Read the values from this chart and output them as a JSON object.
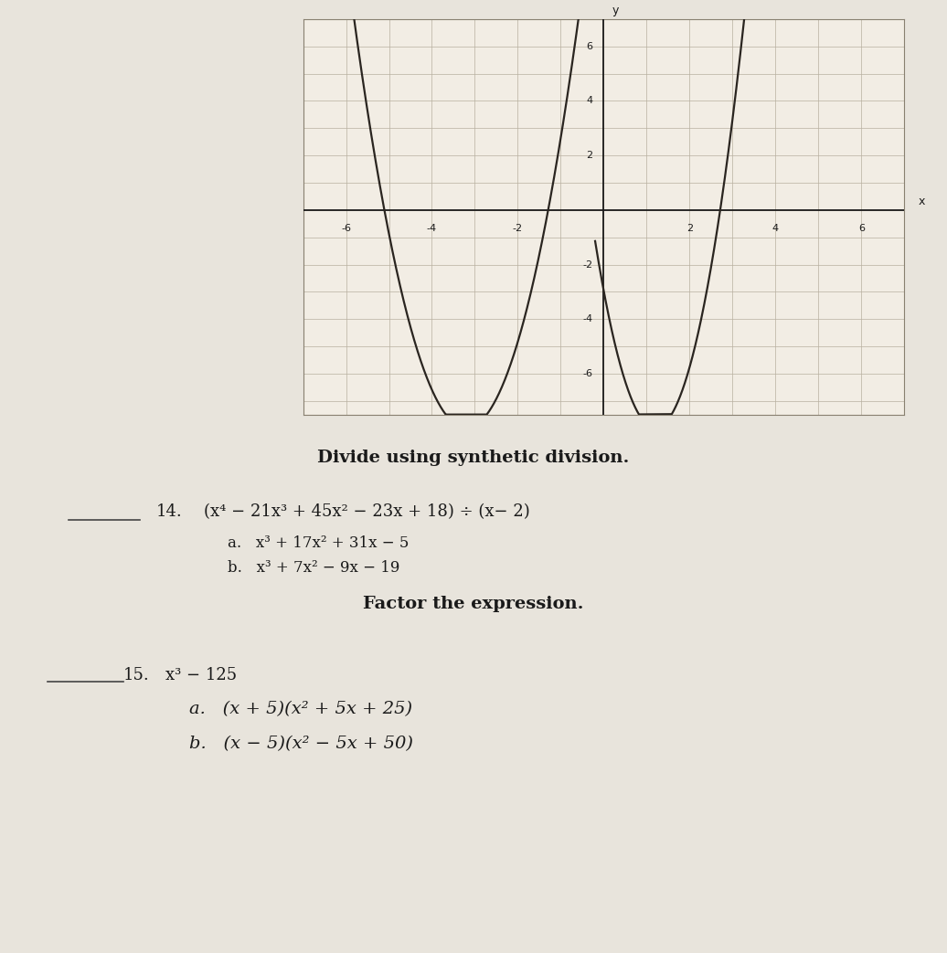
{
  "background_color": "#e8e4dc",
  "graph_bg": "#f2ede4",
  "graph": {
    "xlim": [
      -7,
      7
    ],
    "ylim": [
      -7.5,
      7
    ],
    "xticks": [
      -6,
      -4,
      -2,
      2,
      4,
      6
    ],
    "yticks": [
      -6,
      -4,
      -2,
      2,
      4,
      6
    ],
    "grid_color": "#b8b0a0",
    "axis_color": "#1a1a1a",
    "curve_color": "#2a2520",
    "curve_linewidth": 1.6,
    "xlabel": "x",
    "ylabel": "y",
    "tick_fontsize": 8
  },
  "section_heading1": "Divide using synthetic division.",
  "q14_number": "14.",
  "q14_problem": "(x⁴ − 21x³ + 45x² − 23x + 18) ÷ (x− 2)",
  "q14_a": "a.   x³ + 17x² + 31x − 5",
  "q14_b": "b.   x³ + 7x² − 9x − 19",
  "section_heading2": "Factor the expression.",
  "q15_number": "15.",
  "q15_problem": "x³ − 125",
  "q15_a": "a.   (x + 5)(x² + 5x + 25)",
  "q15_b": "b.   (x − 5)(x² − 5x + 50)",
  "heading_fontsize": 14,
  "qnum_fontsize": 13,
  "qtext_fontsize": 13,
  "answer_fontsize": 12,
  "text_color": "#1a1a1a",
  "line_color": "#444444"
}
